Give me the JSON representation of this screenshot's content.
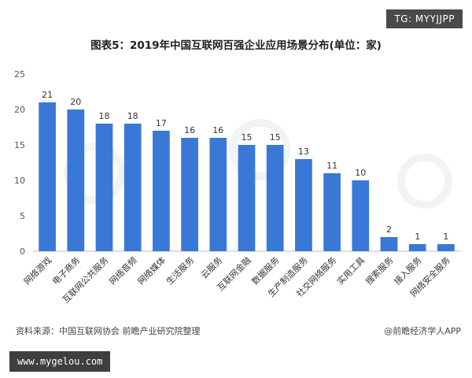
{
  "header_tag": "TG: MYYJJPP",
  "footer": {
    "source": "资料来源：中国互联网协会 前瞻产业研究院整理",
    "credit": "@前瞻经济学人APP",
    "site": "www.mygelou.com"
  },
  "chart_data": {
    "type": "bar",
    "title": "图表5：2019年中国互联网百强企业应用场景分布(单位：家)",
    "categories": [
      "网络游戏",
      "电子商务",
      "互联网公共服务",
      "网络音频",
      "网络媒体",
      "生活服务",
      "云服务",
      "互联网金融",
      "数据服务",
      "生产制造服务",
      "社交网络服务",
      "实用工具",
      "搜索服务",
      "接入服务",
      "网络安全服务"
    ],
    "values": [
      21,
      20,
      18,
      18,
      17,
      16,
      16,
      15,
      15,
      13,
      11,
      10,
      2,
      1,
      1
    ],
    "ylim": [
      0,
      25
    ],
    "yticks": [
      0,
      5,
      10,
      15,
      20,
      25
    ],
    "bar_color": "#3a78d8",
    "grid": false,
    "xlabel": "",
    "ylabel": ""
  }
}
